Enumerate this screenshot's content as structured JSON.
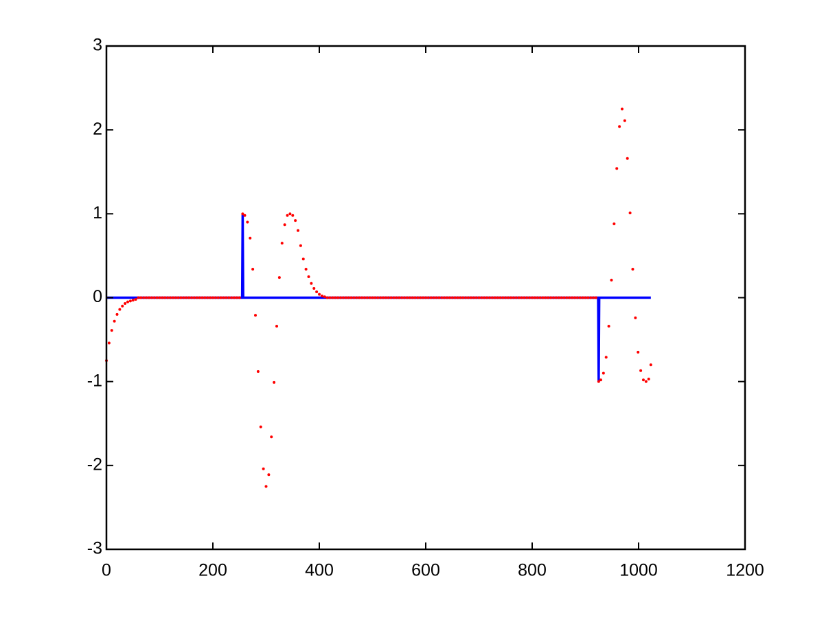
{
  "chart_data": {
    "type": "line",
    "xlim": [
      0,
      1200
    ],
    "xticks": [
      0,
      200,
      400,
      600,
      800,
      1000,
      1200
    ],
    "ylim": [
      -3,
      3
    ],
    "yticks": [
      -3,
      -2,
      -1,
      0,
      1,
      2,
      3
    ],
    "series": [
      {
        "color": "#0000ff",
        "style": "line",
        "x": [
          0,
          255,
          256,
          257,
          924,
          925,
          926,
          1023
        ],
        "values": [
          0,
          0,
          1,
          0,
          0,
          -1,
          0,
          0
        ]
      },
      {
        "color": "#ff0000",
        "style": "dots",
        "x": [
          0,
          5,
          10,
          15,
          20,
          25,
          30,
          35,
          40,
          45,
          50,
          55,
          60,
          65,
          70,
          75,
          80,
          85,
          90,
          95,
          100,
          105,
          110,
          115,
          120,
          125,
          130,
          135,
          140,
          145,
          150,
          155,
          160,
          165,
          170,
          175,
          180,
          185,
          190,
          195,
          200,
          205,
          210,
          215,
          220,
          225,
          230,
          235,
          240,
          245,
          250,
          256,
          260,
          265,
          270,
          275,
          280,
          285,
          290,
          295,
          300,
          305,
          310,
          315,
          320,
          325,
          330,
          335,
          340,
          345,
          350,
          355,
          360,
          365,
          370,
          375,
          380,
          385,
          390,
          395,
          400,
          405,
          410,
          415,
          420,
          425,
          430,
          435,
          440,
          445,
          450,
          455,
          460,
          465,
          470,
          475,
          480,
          485,
          490,
          495,
          500,
          505,
          510,
          515,
          520,
          525,
          530,
          535,
          540,
          545,
          550,
          555,
          560,
          565,
          570,
          575,
          580,
          585,
          590,
          595,
          600,
          605,
          610,
          615,
          620,
          625,
          630,
          635,
          640,
          645,
          650,
          655,
          660,
          665,
          670,
          675,
          680,
          685,
          690,
          695,
          700,
          705,
          710,
          715,
          720,
          725,
          730,
          735,
          740,
          745,
          750,
          755,
          760,
          765,
          770,
          775,
          780,
          785,
          790,
          795,
          800,
          805,
          810,
          815,
          820,
          825,
          830,
          835,
          840,
          845,
          850,
          855,
          860,
          865,
          870,
          875,
          880,
          885,
          890,
          895,
          900,
          905,
          910,
          915,
          920,
          925,
          929,
          934,
          939,
          944,
          949,
          954,
          959,
          964,
          969,
          974,
          979,
          984,
          989,
          994,
          999,
          1004,
          1009,
          1014,
          1019,
          1023
        ],
        "values": [
          -0.75,
          -0.54,
          -0.39,
          -0.28,
          -0.2,
          -0.14,
          -0.1,
          -0.07,
          -0.05,
          -0.04,
          -0.03,
          -0.02,
          0,
          0,
          0,
          0,
          0,
          0,
          0,
          0,
          0,
          0,
          0,
          0,
          0,
          0,
          0,
          0,
          0,
          0,
          0,
          0,
          0,
          0,
          0,
          0,
          0,
          0,
          0,
          0,
          0,
          0,
          0,
          0,
          0,
          0,
          0,
          0,
          0,
          0,
          0,
          1,
          0.98,
          0.9,
          0.71,
          0.34,
          -0.21,
          -0.88,
          -1.54,
          -2.04,
          -2.25,
          -2.11,
          -1.66,
          -1.01,
          -0.34,
          0.24,
          0.65,
          0.87,
          0.98,
          1,
          0.98,
          0.92,
          0.8,
          0.62,
          0.46,
          0.34,
          0.25,
          0.17,
          0.11,
          0.07,
          0.04,
          0.02,
          0.01,
          0,
          0,
          0,
          0,
          0,
          0,
          0,
          0,
          0,
          0,
          0,
          0,
          0,
          0,
          0,
          0,
          0,
          0,
          0,
          0,
          0,
          0,
          0,
          0,
          0,
          0,
          0,
          0,
          0,
          0,
          0,
          0,
          0,
          0,
          0,
          0,
          0,
          0,
          0,
          0,
          0,
          0,
          0,
          0,
          0,
          0,
          0,
          0,
          0,
          0,
          0,
          0,
          0,
          0,
          0,
          0,
          0,
          0,
          0,
          0,
          0,
          0,
          0,
          0,
          0,
          0,
          0,
          0,
          0,
          0,
          0,
          0,
          0,
          0,
          0,
          0,
          0,
          0,
          0,
          0,
          0,
          0,
          0,
          0,
          0,
          0,
          0,
          0,
          0,
          0,
          0,
          0,
          0,
          0,
          0,
          0,
          0,
          0,
          0,
          0,
          0,
          0,
          -1,
          -0.98,
          -0.9,
          -0.71,
          -0.34,
          0.21,
          0.88,
          1.54,
          2.04,
          2.25,
          2.11,
          1.66,
          1.01,
          0.34,
          -0.24,
          -0.65,
          -0.87,
          -0.98,
          -1,
          -0.97,
          -0.8
        ]
      }
    ]
  }
}
